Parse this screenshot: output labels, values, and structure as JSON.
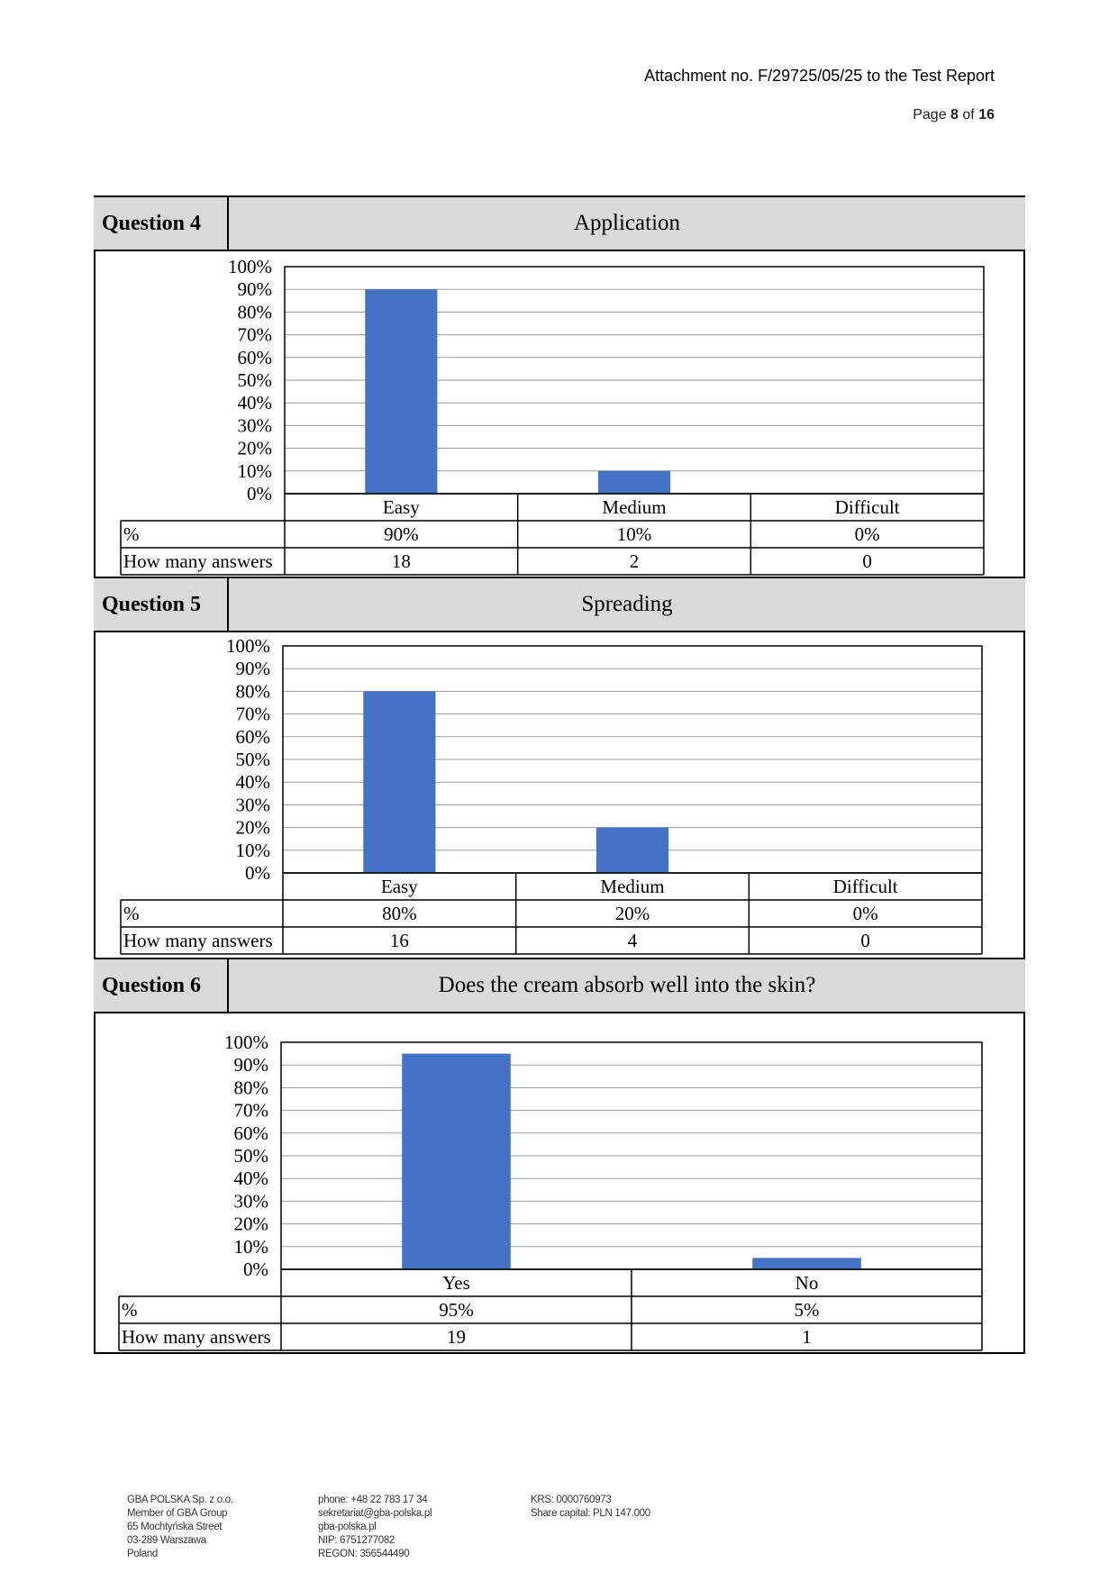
{
  "header": {
    "title": "Attachment no. F/29725/05/25 to the Test Report",
    "page_prefix": "Page",
    "page_current": "8",
    "page_of": "of",
    "page_total": "16"
  },
  "table_row_labels": {
    "percent": "%",
    "count": "How many answers"
  },
  "chart_data": [
    {
      "type": "bar",
      "question": "Question 4",
      "title": "Application",
      "categories": [
        "Easy",
        "Medium",
        "Difficult"
      ],
      "values": [
        90,
        10,
        0
      ],
      "percent_labels": [
        "90%",
        "10%",
        "0%"
      ],
      "answers": [
        "18",
        "2",
        "0"
      ],
      "ylim": [
        0,
        100
      ],
      "yticks": [
        "0%",
        "10%",
        "20%",
        "30%",
        "40%",
        "50%",
        "60%",
        "70%",
        "80%",
        "90%",
        "100%"
      ],
      "grid": true,
      "bar_color": "#4472c4"
    },
    {
      "type": "bar",
      "question": "Question 5",
      "title": "Spreading",
      "categories": [
        "Easy",
        "Medium",
        "Difficult"
      ],
      "values": [
        80,
        20,
        0
      ],
      "percent_labels": [
        "80%",
        "20%",
        "0%"
      ],
      "answers": [
        "16",
        "4",
        "0"
      ],
      "ylim": [
        0,
        100
      ],
      "yticks": [
        "0%",
        "10%",
        "20%",
        "30%",
        "40%",
        "50%",
        "60%",
        "70%",
        "80%",
        "90%",
        "100%"
      ],
      "grid": true,
      "bar_color": "#4472c4"
    },
    {
      "type": "bar",
      "question": "Question 6",
      "title": "Does the cream absorb well into the skin?",
      "categories": [
        "Yes",
        "No"
      ],
      "values": [
        95,
        5
      ],
      "percent_labels": [
        "95%",
        "5%"
      ],
      "answers": [
        "19",
        "1"
      ],
      "ylim": [
        0,
        100
      ],
      "yticks": [
        "0%",
        "10%",
        "20%",
        "30%",
        "40%",
        "50%",
        "60%",
        "70%",
        "80%",
        "90%",
        "100%"
      ],
      "grid": true,
      "bar_color": "#4472c4"
    }
  ],
  "footer": {
    "col1": [
      "GBA POLSKA Sp. z o.o.",
      "Member of GBA Group",
      "65 Mochtyńska Street",
      "03-289 Warszawa",
      "Poland"
    ],
    "col2": [
      "phone: +48 22 783 17 34",
      "sekretariat@gba-polska.pl",
      "gba-polska.pl",
      "NIP: 6751277082",
      "REGON: 356544490"
    ],
    "col3": [
      "KRS: 0000760973",
      "Share capital: PLN 147.000"
    ]
  }
}
